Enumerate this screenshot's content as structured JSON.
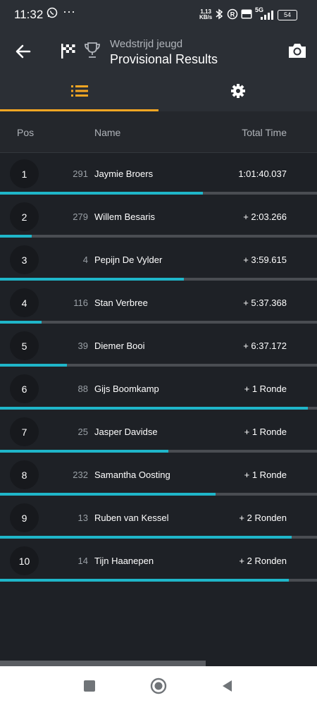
{
  "status_bar": {
    "time": "11:32",
    "speed_value": "1,13",
    "speed_unit": "KB/s",
    "network": "5G",
    "battery": "54",
    "icons": [
      "whatsapp-icon",
      "more-icon",
      "bluetooth-icon",
      "registered-icon",
      "volte-icon",
      "signal-icon",
      "battery-icon"
    ]
  },
  "app_bar": {
    "subtitle": "Wedstrijd jeugd",
    "title": "Provisional Results",
    "icons": [
      "back-arrow-icon",
      "checkered-flag-icon",
      "trophy-icon",
      "camera-icon"
    ]
  },
  "tabs": [
    {
      "icon": "list-icon",
      "active": true
    },
    {
      "icon": "gear-icon",
      "active": false
    }
  ],
  "colors": {
    "accent": "#f5a623",
    "progress": "#1fb6c9",
    "background": "#1e2126",
    "bar": "#2b2f35"
  },
  "table": {
    "headers": {
      "pos": "Pos",
      "name": "Name",
      "total_time": "Total Time"
    },
    "rows": [
      {
        "pos": "1",
        "number": "291",
        "name": "Jaymie Broers",
        "time": "1:01:40.037",
        "progress": 0.64
      },
      {
        "pos": "2",
        "number": "279",
        "name": "Willem Besaris",
        "time": "+ 2:03.266",
        "progress": 0.1
      },
      {
        "pos": "3",
        "number": "4",
        "name": "Pepijn De Vylder",
        "time": "+ 3:59.615",
        "progress": 0.58
      },
      {
        "pos": "4",
        "number": "116",
        "name": "Stan Verbree",
        "time": "+ 5:37.368",
        "progress": 0.13
      },
      {
        "pos": "5",
        "number": "39",
        "name": "Diemer Booi",
        "time": "+ 6:37.172",
        "progress": 0.21
      },
      {
        "pos": "6",
        "number": "88",
        "name": "Gijs Boomkamp",
        "time": "+ 1 Ronde",
        "progress": 0.97
      },
      {
        "pos": "7",
        "number": "25",
        "name": "Jasper Davidse",
        "time": "+ 1 Ronde",
        "progress": 0.53
      },
      {
        "pos": "8",
        "number": "232",
        "name": "Samantha Oosting",
        "time": "+ 1 Ronde",
        "progress": 0.68
      },
      {
        "pos": "9",
        "number": "13",
        "name": "Ruben van Kessel",
        "time": "+ 2 Ronden",
        "progress": 0.92
      },
      {
        "pos": "10",
        "number": "14",
        "name": "Tijn Haanepen",
        "time": "+ 2 Ronden",
        "progress": 0.91
      }
    ]
  },
  "scroll": {
    "horizontal_position": 0.65
  },
  "nav_bar": {
    "icons": [
      "recents-square-icon",
      "home-circle-icon",
      "back-triangle-icon"
    ]
  }
}
